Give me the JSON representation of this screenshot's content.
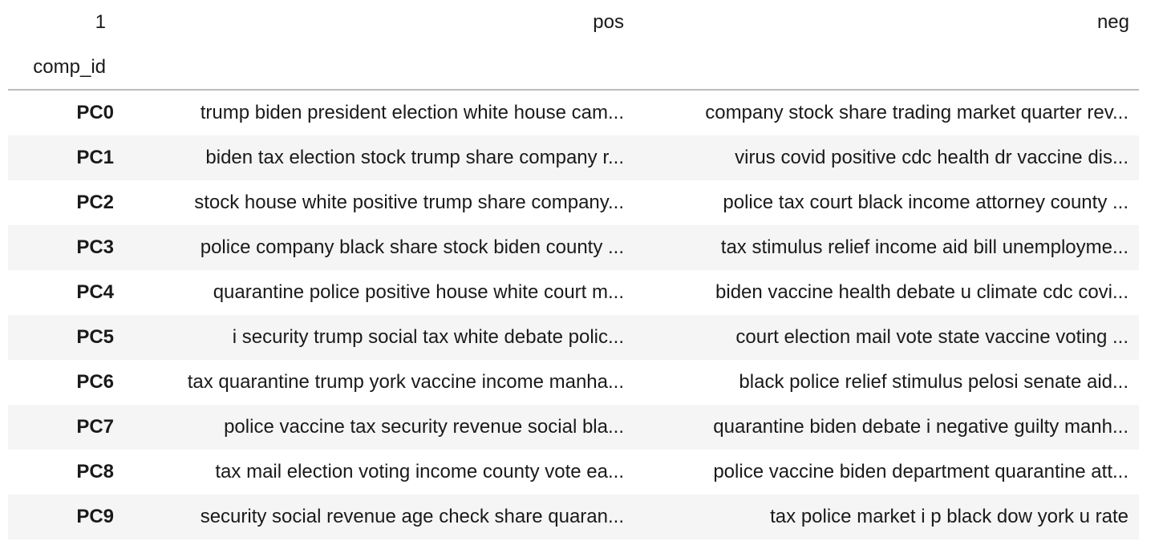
{
  "table": {
    "columns_name": "1",
    "columns": [
      "pos",
      "neg"
    ],
    "index_name": "comp_id",
    "rows": [
      {
        "id": "PC0",
        "pos": "trump biden president election white house cam...",
        "neg": "company stock share trading market quarter rev..."
      },
      {
        "id": "PC1",
        "pos": "biden tax election stock trump share company r...",
        "neg": "virus covid positive cdc health dr vaccine dis..."
      },
      {
        "id": "PC2",
        "pos": "stock house white positive trump share company...",
        "neg": "police tax court black income attorney county ..."
      },
      {
        "id": "PC3",
        "pos": "police company black share stock biden county ...",
        "neg": "tax stimulus relief income aid bill unemployme..."
      },
      {
        "id": "PC4",
        "pos": "quarantine police positive house white court m...",
        "neg": "biden vaccine health debate u climate cdc covi..."
      },
      {
        "id": "PC5",
        "pos": "i security trump social tax white debate polic...",
        "neg": "court election mail vote state vaccine voting ..."
      },
      {
        "id": "PC6",
        "pos": "tax quarantine trump york vaccine income manha...",
        "neg": "black police relief stimulus pelosi senate aid..."
      },
      {
        "id": "PC7",
        "pos": "police vaccine tax security revenue social bla...",
        "neg": "quarantine biden debate i negative guilty manh..."
      },
      {
        "id": "PC8",
        "pos": "tax mail election voting income county vote ea...",
        "neg": "police vaccine biden department quarantine att..."
      },
      {
        "id": "PC9",
        "pos": "security social revenue age check share quaran...",
        "neg": "tax police market i p black dow york u rate"
      }
    ]
  }
}
